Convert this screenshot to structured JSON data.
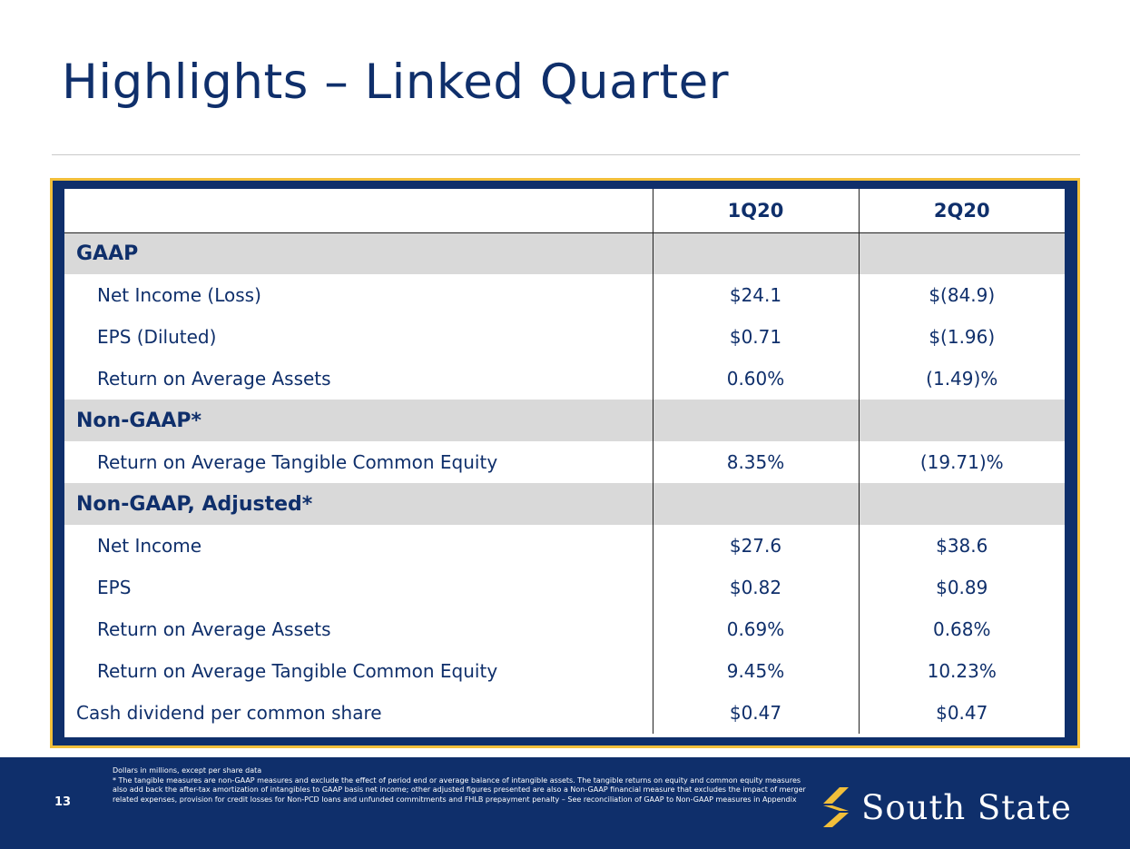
{
  "title": "Highlights – Linked Quarter",
  "table": {
    "columns": [
      "",
      "1Q20",
      "2Q20"
    ],
    "rows": [
      {
        "type": "section",
        "label": "GAAP",
        "q1": "",
        "q2": ""
      },
      {
        "type": "item",
        "label": "Net Income (Loss)",
        "q1": "$24.1",
        "q2": "$(84.9)"
      },
      {
        "type": "item",
        "label": "EPS (Diluted)",
        "q1": "$0.71",
        "q2": "$(1.96)"
      },
      {
        "type": "item",
        "label": "Return on Average Assets",
        "q1": "0.60%",
        "q2": "(1.49)%"
      },
      {
        "type": "section",
        "label": "Non-GAAP*",
        "q1": "",
        "q2": ""
      },
      {
        "type": "item",
        "label": "Return on Average Tangible Common Equity",
        "q1": "8.35%",
        "q2": "(19.71)%"
      },
      {
        "type": "section",
        "label": "Non-GAAP, Adjusted*",
        "q1": "",
        "q2": ""
      },
      {
        "type": "item",
        "label": "Net Income",
        "q1": "$27.6",
        "q2": "$38.6"
      },
      {
        "type": "item",
        "label": "EPS",
        "q1": "$0.82",
        "q2": "$0.89"
      },
      {
        "type": "item",
        "label": "Return on Average Assets",
        "q1": "0.69%",
        "q2": "0.68%"
      },
      {
        "type": "item",
        "label": "Return on Average Tangible Common Equity",
        "q1": "9.45%",
        "q2": "10.23%"
      },
      {
        "type": "last",
        "label": "Cash dividend per common share",
        "q1": "$0.47",
        "q2": "$0.47"
      }
    ]
  },
  "footer": {
    "page_number": "13",
    "footnotes": [
      "Dollars in millions, except per share data",
      "* The tangible measures are non-GAAP measures and exclude the effect of period end or average balance of intangible assets. The tangible returns on equity and common equity measures also add back the after-tax amortization of intangibles to GAAP basis net income; other adjusted figures presented are also a Non-GAAP financial measure that excludes the impact of merger related expenses, provision for credit losses for Non-PCD loans and unfunded commitments and FHLB prepayment penalty – See reconciliation of GAAP to Non-GAAP measures in Appendix"
    ],
    "logo_text": "South State",
    "logo_icon": "s-ribbon-icon"
  },
  "colors": {
    "navy": "#0f2f6b",
    "gold": "#f2bf3a",
    "section_gray": "#d9d9d9"
  }
}
